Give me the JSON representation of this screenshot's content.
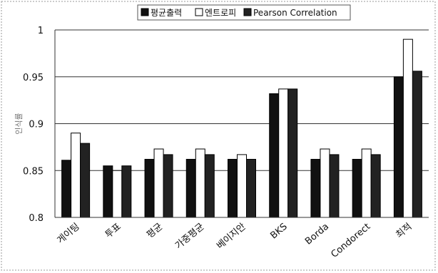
{
  "chart_data": {
    "type": "bar",
    "ylabel": "인식률",
    "ylim": [
      0.8,
      1.0
    ],
    "yticks": [
      "0.8",
      "0.85",
      "0.9",
      "0.95",
      "1"
    ],
    "grid": "horizontal",
    "legend_position": "top",
    "categories": [
      "게이팅",
      "투표",
      "평균",
      "가중평균",
      "베이지안",
      "BKS",
      "Borda",
      "Condorect",
      "최적"
    ],
    "series": [
      {
        "name": "평균출력",
        "color": "#111111",
        "values": [
          0.861,
          0.855,
          0.862,
          0.862,
          0.862,
          0.932,
          0.862,
          0.862,
          0.95
        ]
      },
      {
        "name": "엔트로피",
        "color": "#ffffff",
        "values": [
          0.89,
          0.85,
          0.873,
          0.873,
          0.867,
          0.937,
          0.873,
          0.873,
          0.99
        ]
      },
      {
        "name": "Pearson Correlation",
        "color": "#222222",
        "values": [
          0.879,
          0.855,
          0.867,
          0.867,
          0.862,
          0.937,
          0.867,
          0.867,
          0.956
        ]
      }
    ]
  }
}
